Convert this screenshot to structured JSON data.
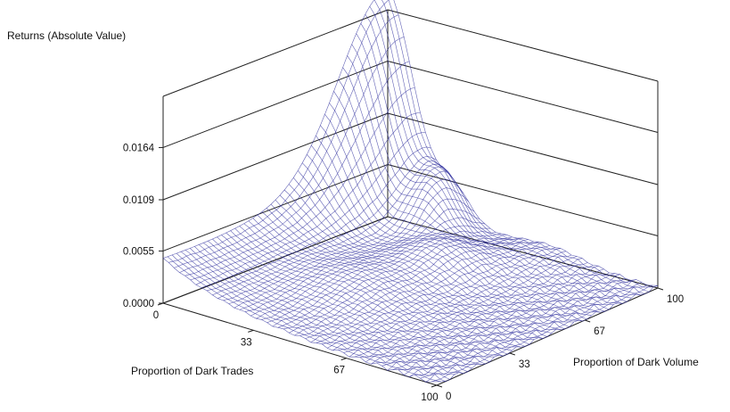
{
  "chart_data": {
    "type": "surface3d",
    "title": "",
    "zlabel": "Returns (Absolute Value)",
    "xlabel": "Proportion of Dark Trades",
    "ylabel": "Proportion of Dark Volume",
    "z_ticks": [
      "0.0000",
      "0.0055",
      "0.0109",
      "0.0164"
    ],
    "x_ticks": [
      "0",
      "33",
      "67",
      "100"
    ],
    "y_ticks": [
      "0",
      "33",
      "67",
      "100"
    ],
    "zlim": [
      0,
      0.0218
    ],
    "xlim": [
      0,
      100
    ],
    "ylim": [
      0,
      100
    ],
    "surface_color": "#2f2f9e",
    "grid": "back-walls",
    "surface_features": {
      "corner_dark_trades_0_dark_volume_0": 0.0042,
      "peak_dark_trades_0_dark_volume_100": 0.0218,
      "secondary_bumps_near_dark_trades_20_to_35_dark_volume_75_to_90": 0.0075,
      "mid_dark_trades_40_dark_volume_40": 0.0018,
      "corner_dark_trades_100_dark_volume_100": 0.0001
    }
  }
}
